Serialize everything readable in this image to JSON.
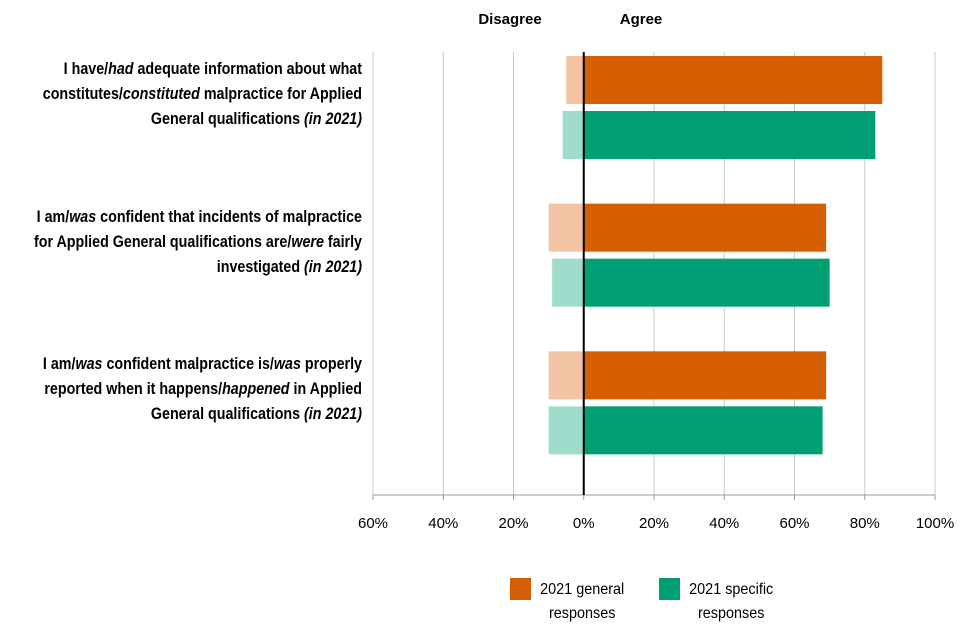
{
  "chart_data": {
    "type": "diverging-bar",
    "disagree_label": "Disagree",
    "agree_label": "Agree",
    "categories": [
      [
        [
          {
            "text": "I have/"
          },
          {
            "text": "had",
            "italic": true
          },
          {
            "text": " adequate information about what"
          }
        ],
        [
          {
            "text": "constitutes/"
          },
          {
            "text": "constituted",
            "italic": true
          },
          {
            "text": " malpractice for Applied"
          }
        ],
        [
          {
            "text": "General qualifications "
          },
          {
            "text": "(in 2021)",
            "italic": true
          }
        ]
      ],
      [
        [
          {
            "text": "I am/"
          },
          {
            "text": "was",
            "italic": true
          },
          {
            "text": " confident that incidents of malpractice"
          }
        ],
        [
          {
            "text": "for Applied General qualifications are/"
          },
          {
            "text": "were",
            "italic": true
          },
          {
            "text": " fairly"
          }
        ],
        [
          {
            "text": "investigated "
          },
          {
            "text": "(in 2021)",
            "italic": true
          }
        ]
      ],
      [
        [
          {
            "text": "I am/"
          },
          {
            "text": "was",
            "italic": true
          },
          {
            "text": " confident malpractice is/"
          },
          {
            "text": "was",
            "italic": true
          },
          {
            "text": " properly"
          }
        ],
        [
          {
            "text": "reported when it happens/"
          },
          {
            "text": "happened",
            "italic": true
          },
          {
            "text": " in Applied"
          }
        ],
        [
          {
            "text": "General qualifications "
          },
          {
            "text": "(in 2021)",
            "italic": true
          }
        ]
      ]
    ],
    "series": [
      {
        "name": "2021 general responses",
        "color": "#d55e00",
        "disagree_color": "#f2c4a3",
        "values": [
          85,
          69,
          69
        ],
        "disagree": [
          -5,
          -10,
          -10
        ]
      },
      {
        "name": "2021 specific responses",
        "color": "#009e73",
        "disagree_color": "#9fdccb",
        "values": [
          83,
          70,
          68
        ],
        "disagree": [
          -6,
          -9,
          -10
        ]
      }
    ],
    "xlim": [
      -60,
      100
    ],
    "xticks": [
      {
        "value": -60,
        "label": "60%"
      },
      {
        "value": -40,
        "label": "40%"
      },
      {
        "value": -20,
        "label": "20%"
      },
      {
        "value": 0,
        "label": "0%"
      },
      {
        "value": 20,
        "label": "20%"
      },
      {
        "value": 40,
        "label": "40%"
      },
      {
        "value": 60,
        "label": "60%"
      },
      {
        "value": 80,
        "label": "80%"
      },
      {
        "value": 100,
        "label": "100%"
      }
    ],
    "grid": true
  }
}
